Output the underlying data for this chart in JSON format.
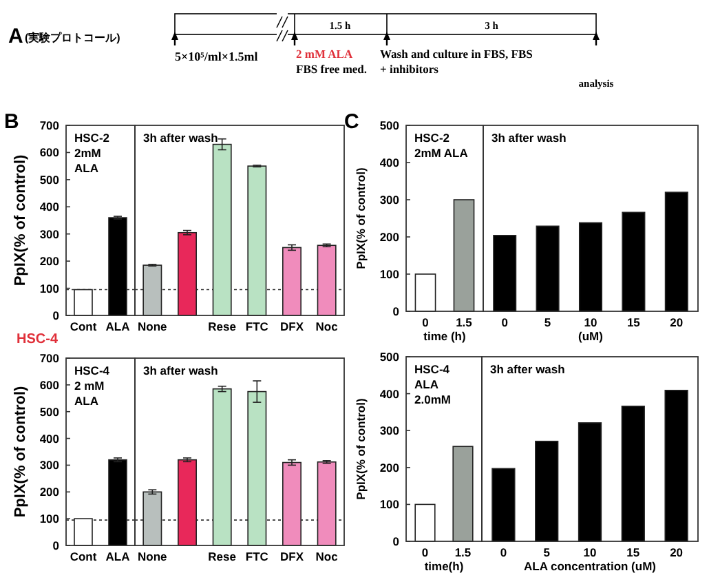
{
  "chart_data": [
    {
      "type": "other",
      "title": "A",
      "annotations": [
        "(実験プロトコール)",
        "5×10⁵/ml×1.5ml",
        "2 mM ALA",
        "FBS free med.",
        "1.5 h",
        "3 h",
        "Wash  and culture in FBS, FBS",
        "+ inhibitors",
        "analysis"
      ]
    },
    {
      "type": "bar",
      "title": "B",
      "ylabel": "PpIX(% of control)",
      "categories": [
        "Cont",
        "ALA"
      ],
      "values": [
        95,
        360
      ],
      "errors": [
        null,
        5
      ],
      "colors": [
        "#ffffff",
        "#000000"
      ],
      "ylim": [
        0,
        700
      ],
      "yticks": [
        0,
        100,
        200,
        300,
        400,
        500,
        600,
        700
      ],
      "ref_lines": [
        {
          "axis": "y",
          "value": 95,
          "line_style": "dotted"
        }
      ],
      "annotations": [
        "HSC-2",
        "2mM",
        "ALA"
      ]
    },
    {
      "type": "bar",
      "categories": [
        "None",
        null,
        "Rese",
        "FTC",
        "DFX",
        "Noc"
      ],
      "values": [
        185,
        305,
        630,
        550,
        250,
        258
      ],
      "errors": [
        3,
        8,
        20,
        3,
        10,
        5
      ],
      "colors": [
        "#b8bfbd",
        "#e8285a",
        "#b9e2c3",
        "#b9e2c3",
        "#f08cbc",
        "#f08cbc"
      ],
      "ylim": [
        0,
        700
      ],
      "yticks": [
        0,
        100,
        200,
        300,
        400,
        500,
        600,
        700
      ],
      "tick_labels": "x",
      "ref_lines": [
        {
          "axis": "y",
          "value": 95,
          "line_style": "dotted"
        }
      ],
      "annotations": [
        "3h after wash"
      ]
    },
    {
      "type": "bar",
      "title": "HSC-4",
      "ylabel": "PpIX(% of control)",
      "categories": [
        "Cont",
        "ALA"
      ],
      "values": [
        100,
        320
      ],
      "errors": [
        null,
        7
      ],
      "colors": [
        "#ffffff",
        "#000000"
      ],
      "ylim": [
        0,
        700
      ],
      "yticks": [
        0,
        100,
        200,
        300,
        400,
        500,
        600,
        700
      ],
      "ref_lines": [
        {
          "axis": "y",
          "value": 95,
          "line_style": "dotted"
        }
      ],
      "annotations": [
        "HSC-4",
        "2 mM",
        "ALA"
      ]
    },
    {
      "type": "bar",
      "categories": [
        "None",
        null,
        "Rese",
        "FTC",
        "DFX",
        "Noc"
      ],
      "values": [
        200,
        320,
        585,
        575,
        310,
        312
      ],
      "errors": [
        8,
        7,
        10,
        40,
        10,
        5
      ],
      "colors": [
        "#b8bfbd",
        "#e8285a",
        "#b9e2c3",
        "#b9e2c3",
        "#f08cbc",
        "#f08cbc"
      ],
      "ylim": [
        0,
        700
      ],
      "yticks": [
        0,
        100,
        200,
        300,
        400,
        500,
        600,
        700
      ],
      "tick_labels": "x",
      "ref_lines": [
        {
          "axis": "y",
          "value": 95,
          "line_style": "dotted"
        }
      ],
      "annotations": [
        "3h after wash"
      ]
    },
    {
      "type": "bar",
      "title": "C",
      "ylabel": "PpIX(% of control)",
      "xlabel": "time (h)",
      "categories": [
        "0",
        "1.5"
      ],
      "values": [
        100,
        300
      ],
      "colors": [
        "#ffffff",
        "#9aa19b"
      ],
      "ylim": [
        0,
        500
      ],
      "yticks": [
        0,
        100,
        200,
        300,
        400,
        500
      ],
      "annotations": [
        "HSC-2",
        "2mM ALA"
      ]
    },
    {
      "type": "bar",
      "xlabel": "(uM)",
      "categories": [
        "0",
        "5",
        "10",
        "15",
        "20"
      ],
      "values": [
        204,
        229,
        238,
        266,
        320
      ],
      "colors": [
        "#000000",
        "#000000",
        "#000000",
        "#000000",
        "#000000"
      ],
      "ylim": [
        0,
        500
      ],
      "yticks": [
        0,
        100,
        200,
        300,
        400,
        500
      ],
      "tick_labels": "x",
      "annotations": [
        "3h after wash"
      ]
    },
    {
      "type": "bar",
      "ylabel": "PpIX(% of control)",
      "xlabel": "time(h)",
      "categories": [
        "0",
        "1.5"
      ],
      "values": [
        100,
        257
      ],
      "colors": [
        "#ffffff",
        "#9aa19b"
      ],
      "ylim": [
        0,
        500
      ],
      "yticks": [
        0,
        100,
        200,
        300,
        400,
        500
      ],
      "annotations": [
        "HSC-4",
        "ALA",
        "2.0mM"
      ]
    },
    {
      "type": "bar",
      "xlabel": "ALA concentration (uM)",
      "categories": [
        "0",
        "5",
        "10",
        "15",
        "20"
      ],
      "values": [
        197,
        271,
        321,
        366,
        409
      ],
      "colors": [
        "#000000",
        "#000000",
        "#000000",
        "#000000",
        "#000000"
      ],
      "ylim": [
        0,
        500
      ],
      "yticks": [
        0,
        100,
        200,
        300,
        400,
        500
      ],
      "tick_labels": "x",
      "annotations": [
        "3h after wash"
      ]
    }
  ]
}
